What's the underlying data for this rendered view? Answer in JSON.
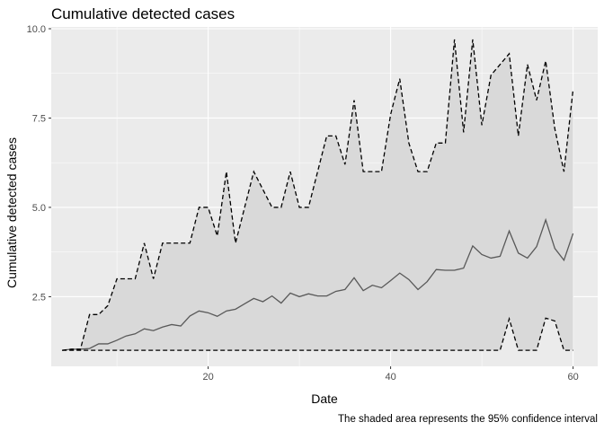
{
  "chart_data": {
    "type": "line",
    "title": "Cumulative detected cases",
    "xlabel": "Date",
    "ylabel": "Cumulative detected cases",
    "caption": "The shaded area represents the 95% confidence interval",
    "xlim": [
      2.8,
      62.7
    ],
    "ylim": [
      0.55,
      10.05
    ],
    "x_ticks": [
      20,
      40,
      60
    ],
    "x_tick_labels": [
      "20",
      "40",
      "60"
    ],
    "y_ticks": [
      2.5,
      5.0,
      7.5,
      10.0
    ],
    "y_tick_labels": [
      "2.5",
      "5.0",
      "7.5",
      "10.0"
    ],
    "grid": true,
    "legend": "none",
    "colors": {
      "panel": "#ebebeb",
      "grid_major": "#ffffff",
      "ribbon": "#d9d9d9",
      "mean_line": "#595959",
      "bound_line": "#000000"
    },
    "x": [
      4,
      5,
      6,
      7,
      8,
      9,
      10,
      11,
      12,
      13,
      14,
      15,
      16,
      17,
      18,
      19,
      20,
      21,
      22,
      23,
      24,
      25,
      26,
      27,
      28,
      29,
      30,
      31,
      32,
      33,
      34,
      35,
      36,
      37,
      38,
      39,
      40,
      41,
      42,
      43,
      44,
      45,
      46,
      47,
      48,
      49,
      50,
      51,
      52,
      53,
      54,
      55,
      56,
      57,
      58,
      59,
      60
    ],
    "series": [
      {
        "name": "Upper bound",
        "style": "dashed",
        "values": [
          1.0,
          1.03,
          1.03,
          2.0,
          2.0,
          2.25,
          3.0,
          3.0,
          3.0,
          4.0,
          3.0,
          4.0,
          4.0,
          4.0,
          4.0,
          5.0,
          5.0,
          4.2,
          6.0,
          4.0,
          5.0,
          6.0,
          5.5,
          5.0,
          5.0,
          6.0,
          5.0,
          5.0,
          6.0,
          7.0,
          7.0,
          6.2,
          8.0,
          6.0,
          6.0,
          6.0,
          7.6,
          8.6,
          6.8,
          6.0,
          6.0,
          6.8,
          6.8,
          9.7,
          7.1,
          9.7,
          7.3,
          8.7,
          9.0,
          9.3,
          7.0,
          9.0,
          8.0,
          9.1,
          7.2,
          6.0,
          8.3
        ]
      },
      {
        "name": "Mean",
        "style": "solid",
        "values": [
          1.0,
          1.03,
          1.03,
          1.05,
          1.18,
          1.18,
          1.28,
          1.4,
          1.46,
          1.6,
          1.55,
          1.65,
          1.72,
          1.68,
          1.96,
          2.1,
          2.05,
          1.95,
          2.1,
          2.15,
          2.3,
          2.45,
          2.36,
          2.52,
          2.32,
          2.6,
          2.5,
          2.58,
          2.52,
          2.52,
          2.65,
          2.7,
          3.03,
          2.67,
          2.82,
          2.75,
          2.95,
          3.16,
          2.98,
          2.7,
          2.92,
          3.26,
          3.24,
          3.24,
          3.3,
          3.92,
          3.68,
          3.58,
          3.63,
          4.34,
          3.72,
          3.58,
          3.9,
          4.65,
          3.85,
          3.52,
          4.27
        ]
      },
      {
        "name": "Lower bound",
        "style": "dashed",
        "values": [
          1.0,
          1.0,
          1.0,
          1.0,
          1.0,
          1.0,
          1.0,
          1.0,
          1.0,
          1.0,
          1.0,
          1.0,
          1.0,
          1.0,
          1.0,
          1.0,
          1.0,
          1.0,
          1.0,
          1.0,
          1.0,
          1.0,
          1.0,
          1.0,
          1.0,
          1.0,
          1.0,
          1.0,
          1.0,
          1.0,
          1.0,
          1.0,
          1.0,
          1.0,
          1.0,
          1.0,
          1.0,
          1.0,
          1.0,
          1.0,
          1.0,
          1.0,
          1.0,
          1.0,
          1.0,
          1.0,
          1.0,
          1.0,
          1.0,
          1.88,
          1.0,
          1.0,
          1.0,
          1.9,
          1.82,
          1.0,
          1.0
        ]
      }
    ]
  }
}
